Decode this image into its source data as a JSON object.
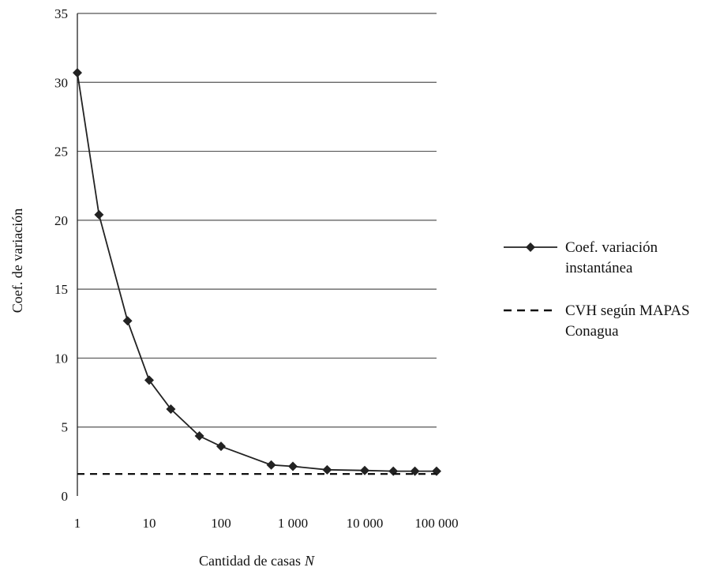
{
  "chart_data": {
    "type": "line",
    "title": "",
    "xlabel": "Cantidad de casas",
    "xlabel_var": "N",
    "ylabel": "Coef. de variación",
    "x_scale": "log",
    "xlim": [
      1,
      100000
    ],
    "ylim": [
      0,
      35
    ],
    "grid": "horizontal",
    "legend_position": "right",
    "y_ticks": [
      {
        "value": 0,
        "label": "0"
      },
      {
        "value": 5,
        "label": "5"
      },
      {
        "value": 10,
        "label": "10"
      },
      {
        "value": 15,
        "label": "15"
      },
      {
        "value": 20,
        "label": "20"
      },
      {
        "value": 25,
        "label": "25"
      },
      {
        "value": 30,
        "label": "30"
      },
      {
        "value": 35,
        "label": "35"
      }
    ],
    "x_ticks": [
      {
        "value": 1,
        "label": "1"
      },
      {
        "value": 10,
        "label": "10"
      },
      {
        "value": 100,
        "label": "100"
      },
      {
        "value": 1000,
        "label": "1 000"
      },
      {
        "value": 10000,
        "label": "10 000"
      },
      {
        "value": 100000,
        "label": "100 000"
      }
    ],
    "series": [
      {
        "name_lines": [
          "Coef. variación",
          "instantánea"
        ],
        "style": "solid-diamond",
        "color": "#222222",
        "points": [
          {
            "x": 1,
            "y": 30.7
          },
          {
            "x": 2,
            "y": 20.4
          },
          {
            "x": 5,
            "y": 12.7
          },
          {
            "x": 10,
            "y": 8.4
          },
          {
            "x": 20,
            "y": 6.3
          },
          {
            "x": 50,
            "y": 4.35
          },
          {
            "x": 100,
            "y": 3.6
          },
          {
            "x": 500,
            "y": 2.25
          },
          {
            "x": 1000,
            "y": 2.15
          },
          {
            "x": 3000,
            "y": 1.9
          },
          {
            "x": 10000,
            "y": 1.85
          },
          {
            "x": 25000,
            "y": 1.8
          },
          {
            "x": 50000,
            "y": 1.8
          },
          {
            "x": 100000,
            "y": 1.8
          }
        ]
      },
      {
        "name_lines": [
          "CVH según MAPAS",
          "Conagua"
        ],
        "style": "dashed",
        "color": "#111111",
        "points": [
          {
            "x": 1,
            "y": 1.6
          },
          {
            "x": 100000,
            "y": 1.6
          }
        ]
      }
    ]
  }
}
